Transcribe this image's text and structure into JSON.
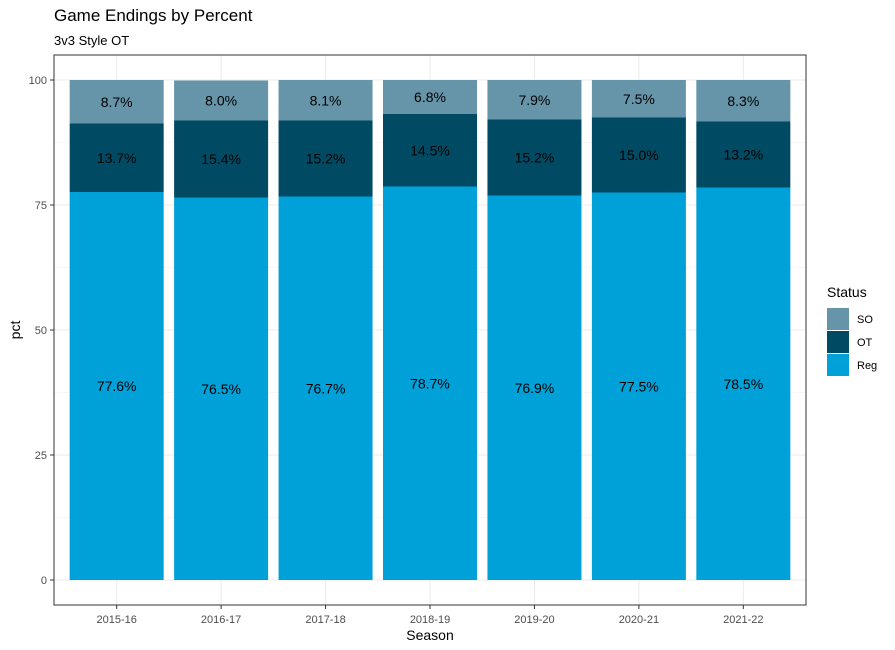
{
  "chart_data": {
    "type": "bar",
    "stacked": true,
    "title": "Game Endings by Percent",
    "subtitle": "3v3 Style OT",
    "xlabel": "Season",
    "ylabel": "pct",
    "ylim": [
      0,
      100
    ],
    "yticks": [
      0,
      25,
      50,
      75,
      100
    ],
    "grid": true,
    "legend_title": "Status",
    "legend_position": "right",
    "categories": [
      "2015-16",
      "2016-17",
      "2017-18",
      "2018-19",
      "2019-20",
      "2020-21",
      "2021-22"
    ],
    "series": [
      {
        "name": "Reg",
        "color": "#00A0D8",
        "values": [
          77.6,
          76.5,
          76.7,
          78.7,
          76.9,
          77.5,
          78.5
        ],
        "labels": [
          "77.6%",
          "76.5%",
          "76.7%",
          "78.7%",
          "76.9%",
          "77.5%",
          "78.5%"
        ]
      },
      {
        "name": "OT",
        "color": "#004B63",
        "values": [
          13.7,
          15.4,
          15.2,
          14.5,
          15.2,
          15.0,
          13.2
        ],
        "labels": [
          "13.7%",
          "15.4%",
          "15.2%",
          "14.5%",
          "15.2%",
          "15.0%",
          "13.2%"
        ]
      },
      {
        "name": "SO",
        "color": "#6694A8",
        "values": [
          8.7,
          8.0,
          8.1,
          6.8,
          7.9,
          7.5,
          8.3
        ],
        "labels": [
          "8.7%",
          "8.0%",
          "8.1%",
          "6.8%",
          "7.9%",
          "7.5%",
          "8.3%"
        ]
      }
    ],
    "legend_order": [
      "SO",
      "OT",
      "Reg"
    ]
  }
}
